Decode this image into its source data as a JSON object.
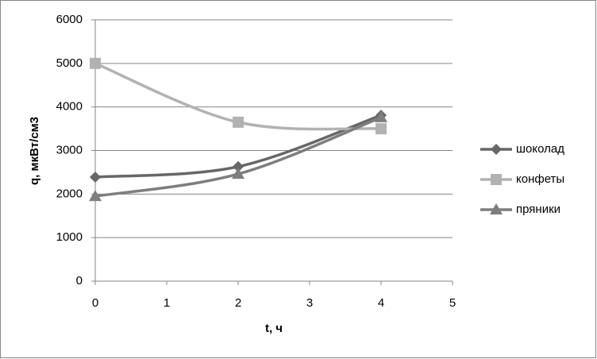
{
  "chart_data": {
    "type": "line",
    "smooth": true,
    "x_label": "t, ч",
    "y_label": "q, мкВт/см3",
    "x": [
      0,
      2,
      4
    ],
    "series": [
      {
        "name": "шоколад",
        "color": "#676767",
        "marker": "diamond",
        "values": [
          2390,
          2630,
          3810
        ]
      },
      {
        "name": "конфеты",
        "color": "#b2b2b2",
        "marker": "square",
        "values": [
          5000,
          3650,
          3500
        ]
      },
      {
        "name": "пряники",
        "color": "#7e7e7e",
        "marker": "triangle",
        "values": [
          1950,
          2460,
          3760
        ]
      }
    ],
    "xlim": [
      0,
      5
    ],
    "xticks": [
      0,
      1,
      2,
      3,
      4,
      5
    ],
    "ylim": [
      0,
      6000
    ],
    "yticks": [
      0,
      1000,
      2000,
      3000,
      4000,
      5000,
      6000
    ],
    "grid": true,
    "legend": "right"
  }
}
